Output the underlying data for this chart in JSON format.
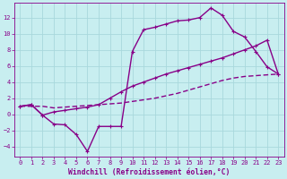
{
  "xlabel": "Windchill (Refroidissement éolien,°C)",
  "background_color": "#c8eef0",
  "grid_color": "#a8d8dc",
  "line_color": "#880088",
  "xlim": [
    -0.5,
    23.5
  ],
  "ylim": [
    -5.2,
    13.8
  ],
  "xticks": [
    0,
    1,
    2,
    3,
    4,
    5,
    6,
    7,
    8,
    9,
    10,
    11,
    12,
    13,
    14,
    15,
    16,
    17,
    18,
    19,
    20,
    21,
    22,
    23
  ],
  "yticks": [
    -4,
    -2,
    0,
    2,
    4,
    6,
    8,
    10,
    12
  ],
  "line1_x": [
    0,
    1,
    2,
    3,
    4,
    5,
    6,
    7,
    8,
    9,
    10,
    11,
    12,
    13,
    14,
    15,
    16,
    17,
    18,
    19,
    20,
    21,
    22,
    23
  ],
  "line1_y": [
    1.0,
    1.2,
    -0.1,
    -1.2,
    -1.3,
    -2.5,
    -4.6,
    -1.5,
    -1.5,
    -1.5,
    7.8,
    10.5,
    10.8,
    11.2,
    11.6,
    11.7,
    12.0,
    13.2,
    12.3,
    10.3,
    9.6,
    7.8,
    5.9,
    5.0
  ],
  "line2_x": [
    0,
    1,
    2,
    3,
    4,
    5,
    6,
    7,
    8,
    9,
    10,
    11,
    12,
    13,
    14,
    15,
    16,
    17,
    18,
    19,
    20,
    21,
    22,
    23
  ],
  "line2_y": [
    1.0,
    1.2,
    -0.1,
    0.3,
    0.5,
    0.7,
    0.9,
    1.2,
    2.0,
    2.8,
    3.5,
    4.0,
    4.5,
    5.0,
    5.4,
    5.8,
    6.2,
    6.6,
    7.0,
    7.5,
    8.0,
    8.5,
    9.2,
    5.0
  ],
  "line3_x": [
    0,
    1,
    2,
    3,
    4,
    5,
    6,
    7,
    8,
    9,
    10,
    11,
    12,
    13,
    14,
    15,
    16,
    17,
    18,
    19,
    20,
    21,
    22,
    23
  ],
  "line3_y": [
    1.0,
    1.0,
    1.0,
    0.8,
    0.9,
    1.0,
    1.1,
    1.2,
    1.3,
    1.4,
    1.6,
    1.8,
    2.0,
    2.3,
    2.6,
    3.0,
    3.4,
    3.8,
    4.2,
    4.5,
    4.7,
    4.8,
    4.9,
    5.0
  ],
  "marker": "+",
  "markersize": 3,
  "linewidth": 1.0,
  "tick_fontsize": 5,
  "label_fontsize": 5.8
}
